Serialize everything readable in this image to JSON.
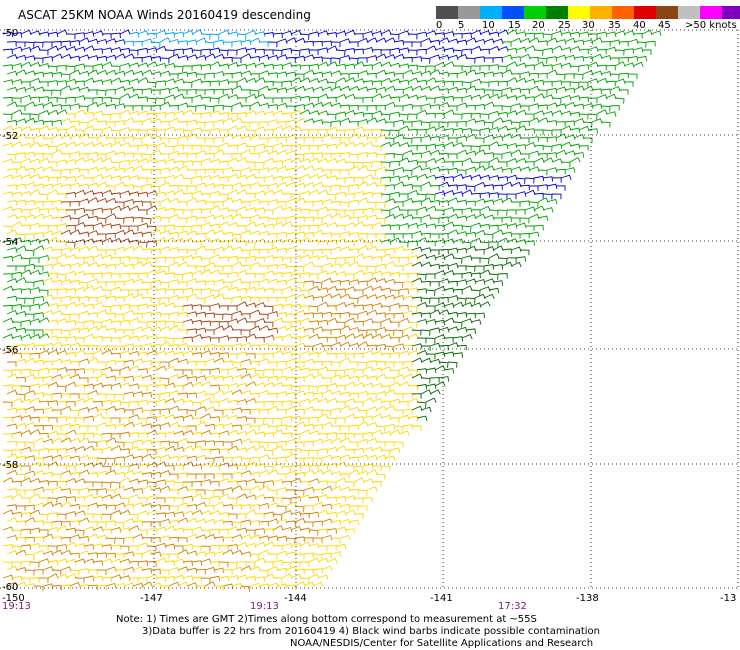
{
  "title": "ASCAT 25KM NOAA Winds 20160419 descending",
  "scale": {
    "colors": [
      "#505050",
      "#999999",
      "#00b0ff",
      "#0050ff",
      "#00d000",
      "#008000",
      "#ffff00",
      "#ffb000",
      "#ff6000",
      "#e00000",
      "#8b4513",
      "#c0c0c0",
      "#ff00ff",
      "#8000c0"
    ],
    "labels": [
      "0",
      "5",
      "10",
      "15",
      "20",
      "25",
      "30",
      "35",
      "40",
      "45",
      ">50 knots"
    ]
  },
  "lat_labels": [
    "-50",
    "-52",
    "-54",
    "-56",
    "-58",
    "-60"
  ],
  "lon_labels": [
    "-150",
    "-147",
    "-144",
    "-141",
    "-138",
    "-13"
  ],
  "times": [
    "19:13",
    "19:13",
    "17:32"
  ],
  "notes": [
    "Note: 1) Times are GMT 2)Times along bottom correspond to measurement at ~55S",
    "3)Data buffer is 22 hrs from 20160419 4) Black wind barbs indicate possible contamination",
    "NOAA/NESDIS/Center for Satellite Applications and Research"
  ],
  "wind_colors": {
    "blue": "#0000cc",
    "light_blue": "#00a0ff",
    "green": "#00a000",
    "dark_green": "#006400",
    "yellow": "#ffd700",
    "orange": "#d08000",
    "brown": "#a04010"
  }
}
